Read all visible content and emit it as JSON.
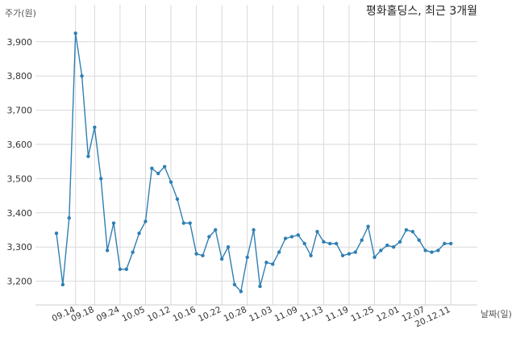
{
  "chart_data": {
    "type": "line",
    "title": "평화홀딩스, 최근 3개월",
    "ylabel": "주가(원)",
    "xlabel": "날짜(일)",
    "ylim": [
      3150,
      3950
    ],
    "yticks": [
      3200,
      3300,
      3400,
      3500,
      3600,
      3700,
      3800,
      3900
    ],
    "ytick_labels": [
      "3,200",
      "3,300",
      "3,400",
      "3,500",
      "3,600",
      "3,700",
      "3,800",
      "3,900"
    ],
    "xtick_labels": [
      "09.14",
      "09.18",
      "09.24",
      "10.05",
      "10.12",
      "10.16",
      "10.22",
      "10.28",
      "11.03",
      "11.09",
      "11.13",
      "11.19",
      "11.25",
      "12.01",
      "12.07",
      "20.12.11"
    ],
    "xtick_positions": [
      3,
      6,
      10,
      14,
      18,
      22,
      26,
      30,
      34,
      38,
      42,
      46,
      50,
      54,
      58,
      62
    ],
    "grid": true,
    "series": [
      {
        "color": "#2f7fb3",
        "values": [
          3340,
          3190,
          3385,
          3925,
          3800,
          3565,
          3650,
          3500,
          3290,
          3370,
          3235,
          3235,
          3285,
          3340,
          3375,
          3530,
          3515,
          3535,
          3490,
          3440,
          3370,
          3370,
          3280,
          3275,
          3330,
          3350,
          3265,
          3300,
          3190,
          3170,
          3270,
          3350,
          3185,
          3255,
          3250,
          3285,
          3325,
          3330,
          3335,
          3310,
          3275,
          3345,
          3315,
          3310,
          3310,
          3275,
          3280,
          3285,
          3320,
          3360,
          3270,
          3290,
          3305,
          3300,
          3315,
          3350,
          3345,
          3320,
          3290,
          3285,
          3290,
          3310,
          3310
        ]
      }
    ]
  }
}
